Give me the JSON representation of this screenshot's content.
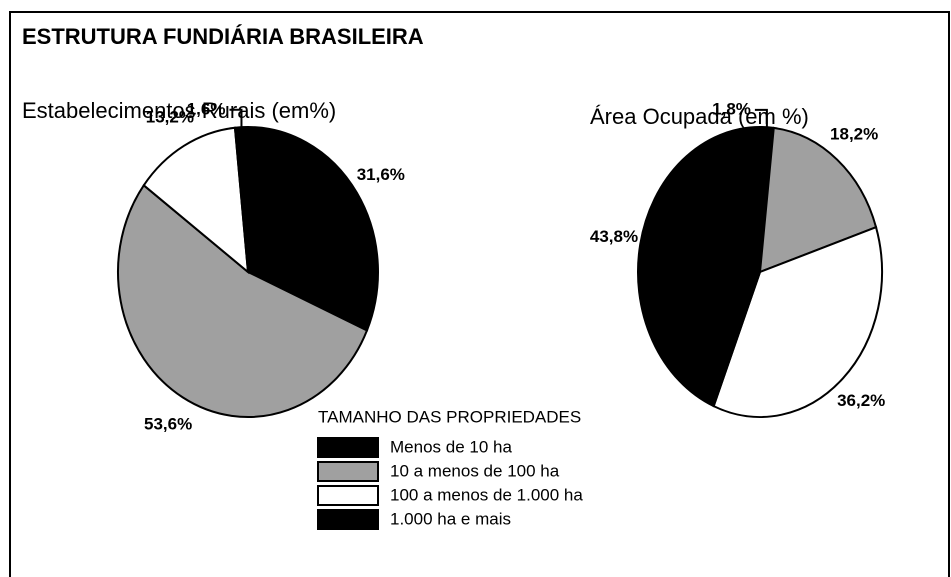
{
  "title": "ESTRUTURA FUNDIÁRIA BRASILEIRA",
  "legend_title": "TAMANHO DAS PROPRIEDADES",
  "chart_data": [
    {
      "type": "pie",
      "title": "Estabelecimentos Rurais (em%)",
      "categories": [
        "Menos de 10 ha",
        "10 a menos de 100 ha",
        "100 a menos de 1.000 ha",
        "1.000 ha e mais"
      ],
      "values": [
        31.6,
        53.6,
        13.2,
        1.6
      ],
      "value_labels": [
        "31,6%",
        "53,6%",
        "13,2%",
        "1,6%"
      ],
      "colors": [
        "#000000",
        "#a0a0a0",
        "#ffffff",
        "#000000"
      ]
    },
    {
      "type": "pie",
      "title": "Área Ocupada (em %)",
      "categories": [
        "Menos de 10 ha",
        "10 a menos de 100 ha",
        "100 a menos de 1.000 ha",
        "1.000 ha e mais"
      ],
      "values": [
        1.8,
        18.2,
        36.2,
        43.8
      ],
      "value_labels": [
        "1,8%",
        "18,2%",
        "36,2%",
        "43,8%"
      ],
      "colors": [
        "#000000",
        "#a0a0a0",
        "#ffffff",
        "#000000"
      ]
    }
  ]
}
